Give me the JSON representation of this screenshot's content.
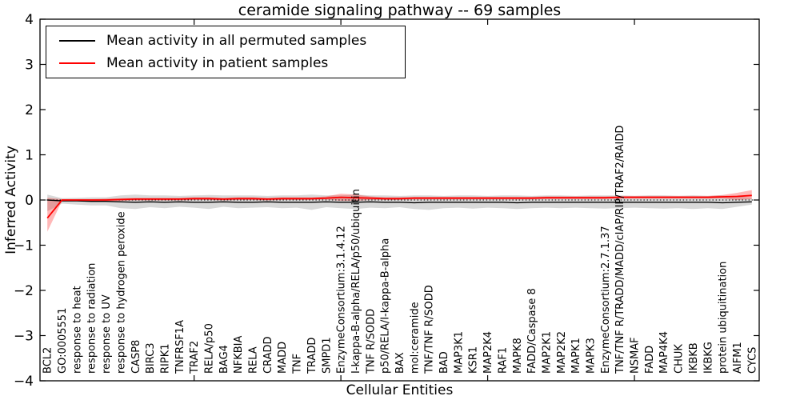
{
  "chart_data": {
    "type": "line",
    "title": "ceramide signaling pathway -- 69 samples",
    "xlabel": "Cellular Entities",
    "ylabel": "Inferred Activity",
    "ylim": [
      -4,
      4
    ],
    "yticks": [
      -4,
      -3,
      -2,
      -1,
      0,
      1,
      2,
      3,
      4
    ],
    "xtick_positions": [
      10,
      20,
      30,
      40
    ],
    "grid": false,
    "legend_position": "upper left",
    "zero_line": true,
    "categories": [
      "BCL2",
      "GO:0005551",
      "response to heat",
      "response to radiation",
      "response to UV",
      "response to hydrogen peroxide",
      "CASP8",
      "BIRC3",
      "RIPK1",
      "TNFRSF1A",
      "TRAF2",
      "RELA/p50",
      "BAG4",
      "NFKBIA",
      "RELA",
      "CRADD",
      "MADD",
      "TNF",
      "TRADD",
      "SMPD1",
      "EnzymeConsortium:3.1.4.12",
      "I-kappa-B-alpha/RELA/p50/ubiquitin",
      "TNF R/SODD",
      "p50/RELA/I-kappa-B-alpha",
      "BAX",
      "mol:ceramide",
      "TNF/TNF R/SODD",
      "BAD",
      "MAP3K1",
      "KSR1",
      "MAP2K4",
      "RAF1",
      "MAPK8",
      "FADD/Caspase 8",
      "MAP2K1",
      "MAP2K2",
      "MAPK1",
      "MAPK3",
      "EnzymeConsortium:2.7.1.37",
      "TNF/TNF R/TRADD/MADD/cIAP/RIP/TRAF2/RAIDD",
      "NSMAF",
      "FADD",
      "MAP4K4",
      "CHUK",
      "IKBKB",
      "IKBKG",
      "protein ubiquitination",
      "AIFM1",
      "CYCS"
    ],
    "series": [
      {
        "name": "Mean activity in all permuted samples",
        "color": "#000000",
        "line_width": 1.4,
        "band_color": "#aaaaaa",
        "band_opacity": 0.45,
        "values": [
          0.0,
          -0.02,
          -0.02,
          -0.03,
          -0.03,
          -0.04,
          -0.05,
          -0.04,
          -0.05,
          -0.04,
          -0.05,
          -0.05,
          -0.04,
          -0.05,
          -0.05,
          -0.04,
          -0.05,
          -0.05,
          -0.05,
          -0.04,
          -0.05,
          -0.05,
          -0.04,
          -0.05,
          -0.05,
          -0.06,
          -0.05,
          -0.05,
          -0.05,
          -0.05,
          -0.05,
          -0.05,
          -0.06,
          -0.05,
          -0.05,
          -0.05,
          -0.05,
          -0.05,
          -0.05,
          -0.05,
          -0.05,
          -0.05,
          -0.05,
          -0.05,
          -0.05,
          -0.05,
          -0.06,
          -0.05,
          -0.04
        ],
        "band_upper": [
          0.12,
          0.04,
          0.05,
          0.06,
          0.06,
          0.1,
          0.12,
          0.1,
          0.1,
          0.09,
          0.1,
          0.11,
          0.1,
          0.1,
          0.1,
          0.09,
          0.1,
          0.1,
          0.12,
          0.1,
          0.1,
          0.12,
          0.1,
          0.1,
          0.09,
          0.1,
          0.1,
          0.09,
          0.1,
          0.1,
          0.09,
          0.1,
          0.1,
          0.09,
          0.1,
          0.1,
          0.09,
          0.1,
          0.1,
          0.1,
          0.09,
          0.1,
          0.1,
          0.09,
          0.1,
          0.09,
          0.1,
          0.08,
          0.05
        ],
        "band_lower": [
          -0.25,
          -0.08,
          -0.1,
          -0.12,
          -0.12,
          -0.18,
          -0.2,
          -0.16,
          -0.18,
          -0.15,
          -0.17,
          -0.2,
          -0.15,
          -0.18,
          -0.17,
          -0.16,
          -0.18,
          -0.17,
          -0.22,
          -0.16,
          -0.18,
          -0.2,
          -0.17,
          -0.18,
          -0.16,
          -0.2,
          -0.22,
          -0.18,
          -0.17,
          -0.19,
          -0.17,
          -0.18,
          -0.2,
          -0.18,
          -0.17,
          -0.18,
          -0.17,
          -0.18,
          -0.19,
          -0.18,
          -0.17,
          -0.18,
          -0.19,
          -0.18,
          -0.2,
          -0.18,
          -0.2,
          -0.15,
          -0.1
        ]
      },
      {
        "name": "Mean activity in patient samples",
        "color": "#ff0000",
        "line_width": 1.8,
        "band_color": "#ff0000",
        "band_opacity": 0.28,
        "values": [
          -0.4,
          0.0,
          0.0,
          0.0,
          0.0,
          0.01,
          0.02,
          0.02,
          0.02,
          0.02,
          0.03,
          0.03,
          0.02,
          0.03,
          0.03,
          0.02,
          0.03,
          0.03,
          0.03,
          0.04,
          0.06,
          0.05,
          0.04,
          0.03,
          0.03,
          0.04,
          0.04,
          0.04,
          0.04,
          0.04,
          0.04,
          0.04,
          0.04,
          0.04,
          0.05,
          0.05,
          0.05,
          0.05,
          0.05,
          0.06,
          0.06,
          0.06,
          0.06,
          0.06,
          0.06,
          0.06,
          0.07,
          0.08,
          0.1
        ],
        "band_upper": [
          0.05,
          0.02,
          0.02,
          0.02,
          0.03,
          0.04,
          0.05,
          0.05,
          0.05,
          0.05,
          0.06,
          0.06,
          0.05,
          0.06,
          0.06,
          0.05,
          0.06,
          0.06,
          0.06,
          0.08,
          0.14,
          0.12,
          0.08,
          0.06,
          0.06,
          0.07,
          0.07,
          0.07,
          0.07,
          0.07,
          0.07,
          0.07,
          0.07,
          0.07,
          0.08,
          0.08,
          0.08,
          0.08,
          0.08,
          0.09,
          0.09,
          0.09,
          0.09,
          0.09,
          0.09,
          0.09,
          0.11,
          0.16,
          0.22
        ],
        "band_lower": [
          -0.7,
          -0.02,
          -0.02,
          -0.02,
          -0.02,
          -0.02,
          -0.01,
          -0.01,
          -0.01,
          -0.01,
          0.0,
          0.0,
          -0.01,
          0.0,
          0.0,
          -0.01,
          0.0,
          0.0,
          0.0,
          0.01,
          -0.02,
          -0.02,
          0.0,
          0.0,
          0.0,
          0.01,
          0.01,
          0.01,
          0.01,
          0.01,
          0.01,
          0.01,
          0.01,
          0.01,
          0.02,
          0.02,
          0.02,
          0.02,
          0.02,
          0.03,
          0.03,
          0.03,
          0.03,
          0.03,
          0.03,
          0.03,
          0.03,
          0.0,
          0.02
        ]
      }
    ]
  }
}
